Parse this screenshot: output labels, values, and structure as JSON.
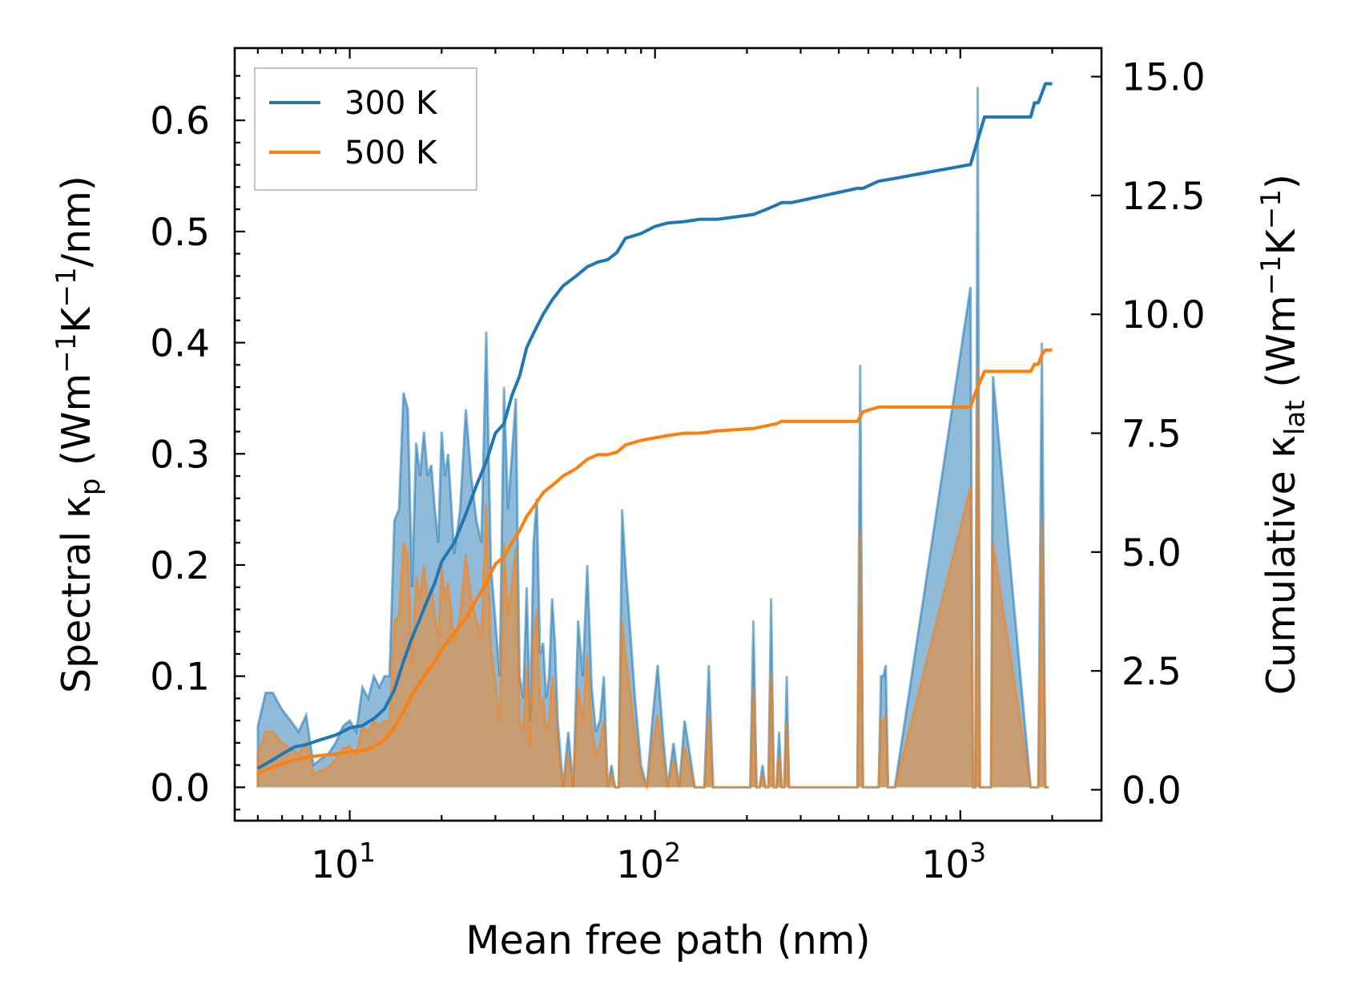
{
  "chart_data": {
    "type": "line",
    "xscale": "log",
    "xlim": [
      4.2,
      2900
    ],
    "ylim_left": [
      -0.03,
      0.665
    ],
    "ylim_right": [
      -0.65,
      15.6
    ],
    "xlabel": "Mean free path (nm)",
    "ylabel_left": "Spectral κₚ (Wm⁻¹K⁻¹/nm)",
    "ylabel_right": "Cumulative κ_lat (Wm⁻¹K⁻¹)",
    "x_ticks": [
      {
        "value": 10,
        "base": "10",
        "exp": "1"
      },
      {
        "value": 100,
        "base": "10",
        "exp": "2"
      },
      {
        "value": 1000,
        "base": "10",
        "exp": "3"
      }
    ],
    "y_left_ticks": [
      "0.0",
      "0.1",
      "0.2",
      "0.3",
      "0.4",
      "0.5",
      "0.6"
    ],
    "y_right_ticks": [
      "0.0",
      "2.5",
      "5.0",
      "7.5",
      "10.0",
      "12.5",
      "15.0"
    ],
    "legend": {
      "placement": "top-left",
      "entries": [
        "300 K",
        "500 K"
      ]
    },
    "colors": {
      "s300": "#1f77b4",
      "s500": "#ff7f0e",
      "fill300": "#1f77b4",
      "fill500": "#ff7f0e"
    },
    "spectral": {
      "x": [
        5.0,
        5.3,
        5.6,
        6.0,
        6.4,
        6.8,
        7.2,
        7.6,
        8.0,
        8.5,
        9.0,
        9.5,
        10.0,
        10.5,
        11.0,
        11.5,
        12.0,
        12.5,
        13.0,
        13.5,
        14.0,
        14.5,
        15.0,
        15.5,
        16.0,
        16.5,
        17.0,
        17.5,
        18.0,
        18.5,
        19.0,
        19.5,
        20.0,
        20.5,
        21.0,
        22.0,
        23.0,
        24.0,
        25.0,
        26.0,
        27.0,
        28.0,
        29.0,
        30.0,
        31.0,
        32.0,
        33.0,
        34.0,
        35.0,
        36.0,
        37.0,
        38.0,
        39.0,
        40.0,
        41.0,
        42.0,
        43.0,
        44.0,
        45.0,
        46.0,
        47.0,
        48.0,
        50.0,
        52.0,
        54.0,
        56.0,
        58.0,
        60.0,
        62.0,
        64.0,
        66.0,
        68.0,
        70.0,
        72.0,
        74.0,
        76.0,
        78.0,
        80.0,
        83.0,
        86.0,
        90.0,
        94.0,
        98.0,
        102.0,
        106.0,
        110.0,
        115.0,
        120.0,
        125.0,
        130.0,
        135.0,
        140.0,
        145.0,
        150.0,
        155.0,
        160.0,
        200.0,
        205.0,
        210.0,
        215.0,
        220.0,
        225.0,
        230.0,
        235.0,
        240.0,
        245.0,
        250.0,
        255.0,
        260.0,
        265.0,
        270.0,
        275.0,
        280.0,
        285.0,
        290.0,
        460.0,
        470.0,
        480.0,
        490.0,
        500.0,
        540.0,
        550.0,
        560.0,
        570.0,
        580.0,
        590.0,
        600.0,
        610.0,
        1080.0,
        1100.0,
        1120.0,
        1140.0,
        1160.0,
        1180.0,
        1200.0,
        1220.0,
        1240.0,
        1260.0,
        1280.0,
        1700.0,
        1750.0,
        1800.0,
        1850.0,
        1900.0,
        1950.0,
        2000.0
      ],
      "y300": [
        0.055,
        0.085,
        0.085,
        0.07,
        0.06,
        0.05,
        0.065,
        0.02,
        0.025,
        0.03,
        0.04,
        0.055,
        0.06,
        0.05,
        0.09,
        0.08,
        0.1,
        0.09,
        0.1,
        0.1,
        0.24,
        0.25,
        0.355,
        0.34,
        0.18,
        0.31,
        0.28,
        0.32,
        0.28,
        0.29,
        0.25,
        0.22,
        0.32,
        0.28,
        0.3,
        0.21,
        0.25,
        0.34,
        0.28,
        0.24,
        0.22,
        0.41,
        0.2,
        0.15,
        0.1,
        0.36,
        0.25,
        0.3,
        0.35,
        0.1,
        0.08,
        0.18,
        0.06,
        0.22,
        0.26,
        0.12,
        0.13,
        0.08,
        0.1,
        0.17,
        0.13,
        0.06,
        0.0,
        0.05,
        0.0,
        0.15,
        0.1,
        0.2,
        0.09,
        0.05,
        0.06,
        0.1,
        0.0,
        0.02,
        0.0,
        0.0,
        0.25,
        0.2,
        0.14,
        0.08,
        0.02,
        0.0,
        0.06,
        0.11,
        0.05,
        0.0,
        0.04,
        0.0,
        0.06,
        0.03,
        0.0,
        0.0,
        0.0,
        0.11,
        0.0,
        0.0,
        0.0,
        0.0,
        0.15,
        0.0,
        0.0,
        0.02,
        0.0,
        0.0,
        0.17,
        0.0,
        0.0,
        0.05,
        0.0,
        0.0,
        0.1,
        0.0,
        0.0,
        0.0,
        0.0,
        0.0,
        0.38,
        0.0,
        0.0,
        0.0,
        0.0,
        0.1,
        0.1,
        0.11,
        0.0,
        0.0,
        0.0,
        0.0,
        0.45,
        0.0,
        0.0,
        0.63,
        0.0,
        0.0,
        0.0,
        0.0,
        0.0,
        0.0,
        0.37,
        0.0,
        0.0,
        0.0,
        0.4,
        0.0,
        0.0
      ],
      "y500": [
        0.03,
        0.05,
        0.05,
        0.04,
        0.035,
        0.03,
        0.04,
        0.012,
        0.015,
        0.018,
        0.025,
        0.035,
        0.037,
        0.03,
        0.055,
        0.05,
        0.06,
        0.055,
        0.06,
        0.06,
        0.15,
        0.155,
        0.22,
        0.21,
        0.11,
        0.19,
        0.17,
        0.2,
        0.17,
        0.18,
        0.155,
        0.135,
        0.2,
        0.17,
        0.185,
        0.13,
        0.155,
        0.21,
        0.17,
        0.15,
        0.135,
        0.255,
        0.125,
        0.095,
        0.06,
        0.22,
        0.155,
        0.185,
        0.215,
        0.06,
        0.05,
        0.11,
        0.037,
        0.135,
        0.16,
        0.075,
        0.08,
        0.05,
        0.06,
        0.1,
        0.08,
        0.037,
        0.0,
        0.03,
        0.0,
        0.09,
        0.06,
        0.12,
        0.055,
        0.03,
        0.037,
        0.06,
        0.0,
        0.012,
        0.0,
        0.0,
        0.15,
        0.12,
        0.085,
        0.05,
        0.012,
        0.0,
        0.037,
        0.065,
        0.03,
        0.0,
        0.025,
        0.0,
        0.037,
        0.018,
        0.0,
        0.0,
        0.0,
        0.065,
        0.0,
        0.0,
        0.0,
        0.0,
        0.09,
        0.0,
        0.0,
        0.012,
        0.0,
        0.0,
        0.105,
        0.0,
        0.0,
        0.03,
        0.0,
        0.0,
        0.06,
        0.0,
        0.0,
        0.0,
        0.0,
        0.0,
        0.23,
        0.0,
        0.0,
        0.0,
        0.0,
        0.06,
        0.06,
        0.065,
        0.0,
        0.0,
        0.0,
        0.0,
        0.27,
        0.0,
        0.0,
        0.38,
        0.0,
        0.0,
        0.0,
        0.0,
        0.0,
        0.0,
        0.22,
        0.0,
        0.0,
        0.0,
        0.24,
        0.0,
        0.0
      ]
    },
    "cumulative": {
      "x300": [
        5.0,
        5.5,
        6.0,
        6.6,
        7.2,
        8.0,
        9.0,
        10.0,
        11.0,
        12.0,
        12.5,
        13.0,
        14.0,
        15.0,
        16.0,
        17.0,
        18.0,
        19.0,
        20.0,
        22.0,
        24.0,
        26.0,
        28.0,
        30.0,
        32.0,
        34.0,
        36.0,
        38.0,
        40.0,
        43.0,
        46.0,
        50.0,
        55.0,
        60.0,
        65.0,
        70.0,
        75.0,
        80.0,
        90.0,
        100.0,
        110.0,
        125.0,
        140.0,
        160.0,
        210.0,
        230.0,
        250.0,
        260.0,
        280.0,
        460.0,
        480.0,
        540.0,
        600.0,
        1080.0,
        1120.0,
        1200.0,
        1220.0,
        1700.0,
        1750.0,
        1800.0,
        1850.0,
        1900.0,
        2000.0
      ],
      "y300": [
        0.45,
        0.6,
        0.75,
        0.9,
        0.95,
        1.05,
        1.15,
        1.3,
        1.35,
        1.5,
        1.6,
        1.7,
        2.1,
        2.7,
        3.2,
        3.6,
        4.0,
        4.35,
        4.8,
        5.2,
        5.8,
        6.4,
        6.9,
        7.5,
        7.7,
        8.3,
        8.7,
        9.3,
        9.6,
        10.0,
        10.3,
        10.6,
        10.8,
        11.0,
        11.1,
        11.15,
        11.3,
        11.6,
        11.7,
        11.85,
        11.92,
        11.95,
        12.0,
        12.0,
        12.1,
        12.2,
        12.3,
        12.35,
        12.35,
        12.65,
        12.65,
        12.8,
        12.85,
        13.15,
        13.5,
        14.15,
        14.15,
        14.15,
        14.45,
        14.45,
        14.65,
        14.85,
        14.85
      ],
      "x500": [
        5.0,
        5.5,
        6.0,
        6.6,
        7.2,
        8.0,
        9.0,
        10.0,
        11.0,
        12.0,
        13.0,
        14.0,
        15.0,
        16.0,
        17.0,
        18.0,
        19.0,
        20.0,
        22.0,
        24.0,
        26.0,
        28.0,
        30.0,
        32.0,
        34.0,
        36.0,
        38.0,
        40.0,
        43.0,
        46.0,
        50.0,
        55.0,
        60.0,
        65.0,
        70.0,
        75.0,
        80.0,
        90.0,
        100.0,
        110.0,
        125.0,
        140.0,
        160.0,
        210.0,
        230.0,
        250.0,
        260.0,
        280.0,
        460.0,
        480.0,
        540.0,
        600.0,
        1080.0,
        1120.0,
        1200.0,
        1220.0,
        1700.0,
        1750.0,
        1800.0,
        1850.0,
        1900.0,
        2000.0
      ],
      "y500": [
        0.35,
        0.45,
        0.55,
        0.63,
        0.68,
        0.72,
        0.75,
        0.8,
        0.82,
        0.9,
        1.05,
        1.3,
        1.65,
        2.0,
        2.25,
        2.5,
        2.7,
        2.95,
        3.3,
        3.6,
        4.0,
        4.35,
        4.75,
        4.9,
        5.2,
        5.45,
        5.75,
        5.95,
        6.25,
        6.4,
        6.6,
        6.75,
        6.95,
        7.05,
        7.05,
        7.1,
        7.25,
        7.35,
        7.4,
        7.45,
        7.5,
        7.5,
        7.55,
        7.6,
        7.65,
        7.7,
        7.75,
        7.75,
        7.75,
        7.95,
        8.05,
        8.05,
        8.05,
        8.35,
        8.8,
        8.8,
        8.8,
        8.95,
        8.95,
        9.15,
        9.25,
        9.25
      ]
    }
  }
}
